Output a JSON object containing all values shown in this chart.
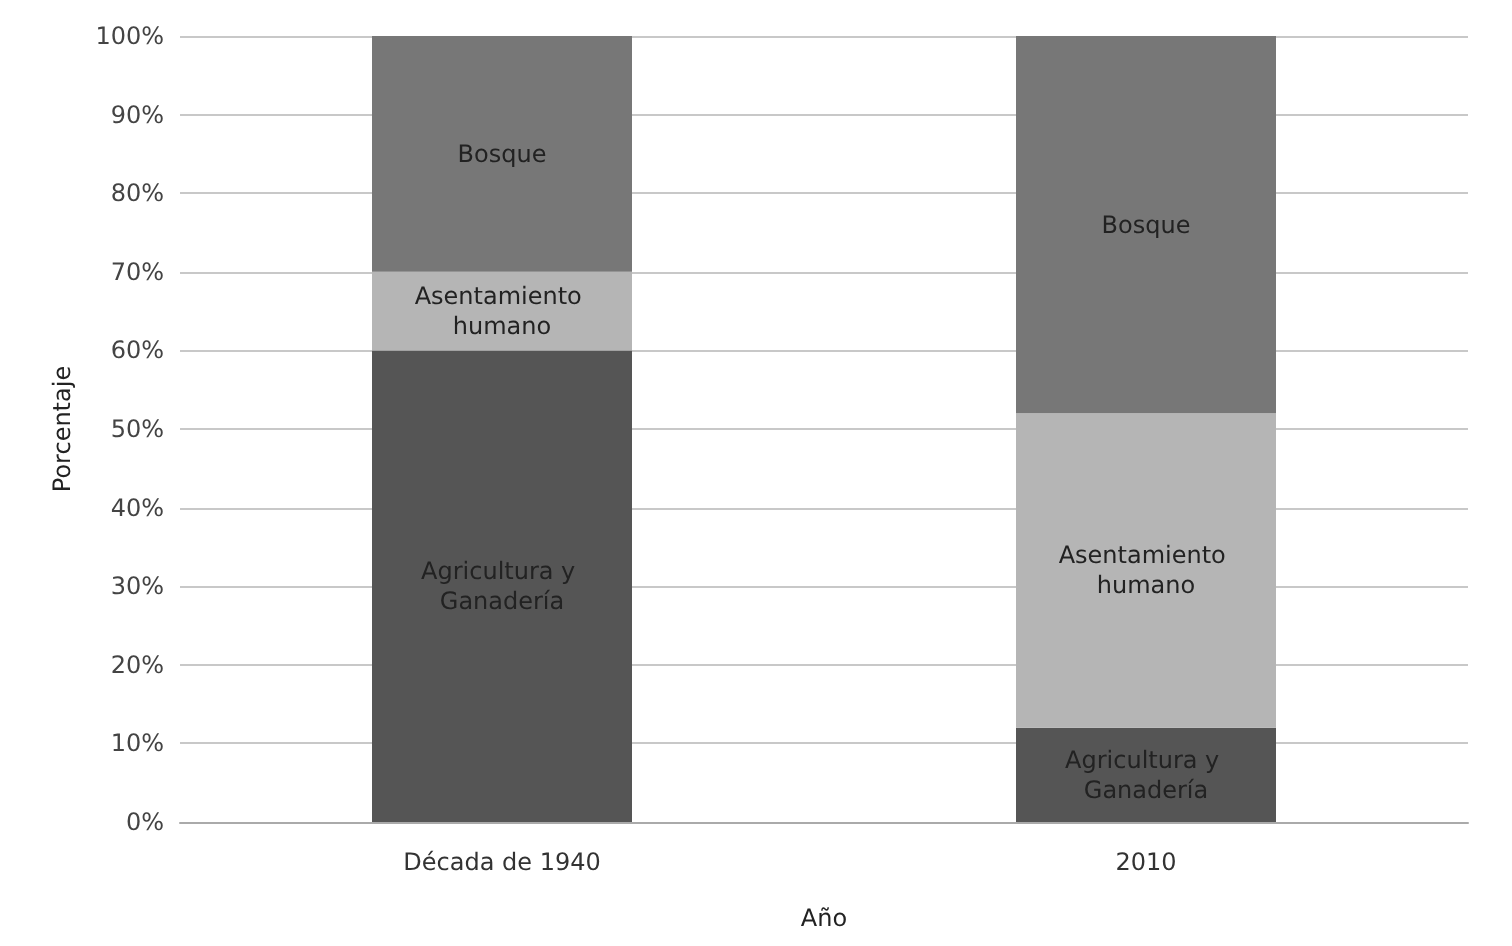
{
  "chart_data": {
    "type": "bar",
    "stacked": true,
    "xlabel": "Año",
    "ylabel": "Porcentaje",
    "categories": [
      "Década de 1940",
      "2010"
    ],
    "series": [
      {
        "name": "Agricultura y Ganadería",
        "color": "#555555",
        "values": [
          60,
          12
        ]
      },
      {
        "name": "Asentamiento humano",
        "color": "#b5b5b5",
        "values": [
          10,
          40
        ]
      },
      {
        "name": "Bosque",
        "color": "#777777",
        "values": [
          30,
          48
        ]
      }
    ],
    "ylim": [
      0,
      100
    ],
    "yticks": [
      {
        "value": 0,
        "label": "0%"
      },
      {
        "value": 10,
        "label": "10%"
      },
      {
        "value": 20,
        "label": "20%"
      },
      {
        "value": 30,
        "label": "30%"
      },
      {
        "value": 40,
        "label": "40%"
      },
      {
        "value": 50,
        "label": "50%"
      },
      {
        "value": 60,
        "label": "60%"
      },
      {
        "value": 70,
        "label": "70%"
      },
      {
        "value": 80,
        "label": "80%"
      },
      {
        "value": 90,
        "label": "90%"
      },
      {
        "value": 100,
        "label": "100%"
      }
    ],
    "grid": "y",
    "legend": false
  }
}
